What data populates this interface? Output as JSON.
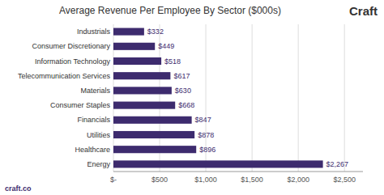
{
  "chart_data": {
    "type": "bar",
    "orientation": "horizontal",
    "title": "Average Revenue Per Employee By Sector ($000s)",
    "annotations": [
      "Craft",
      "craft.co"
    ],
    "categories": [
      "Energy",
      "Healthcare",
      "Utilities",
      "Financials",
      "Consumer Staples",
      "Materials",
      "Telecommunication Services",
      "Information Technology",
      "Consumer Discretionary",
      "Industrials"
    ],
    "values": [
      2267,
      896,
      878,
      847,
      668,
      630,
      617,
      518,
      449,
      332
    ],
    "value_labels": [
      "$2,267",
      "$896",
      "$878",
      "$847",
      "$668",
      "$630",
      "$617",
      "$518",
      "$449",
      "$332"
    ],
    "data_labels": true,
    "color": "#3d2b6e",
    "xlim": [
      0,
      2700
    ],
    "xticks": [
      {
        "value": 0,
        "label": "$-"
      },
      {
        "value": 500,
        "label": "$500"
      },
      {
        "value": 1000,
        "label": "$1,000"
      },
      {
        "value": 1500,
        "label": "$1,500"
      },
      {
        "value": 2000,
        "label": "$2,000"
      },
      {
        "value": 2500,
        "label": "$2,500"
      }
    ],
    "grid": true
  }
}
